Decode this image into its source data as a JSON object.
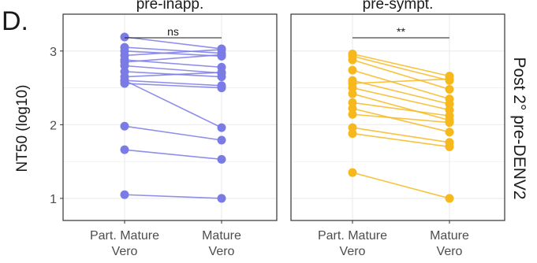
{
  "panel_letter": "D.",
  "strip_right": "Post 2° pre-DENV2",
  "chart_data": [
    {
      "type": "line",
      "facet": "pre-inapp.",
      "ylabel": "NT50 (log10)",
      "categories": [
        "Part. Mature Vero",
        "Mature Vero"
      ],
      "x_tick_lines": [
        [
          "Part. Mature",
          "Vero"
        ],
        [
          "Mature",
          "Vero"
        ]
      ],
      "y_ticks": [
        "1",
        "2",
        "3"
      ],
      "ylim": [
        0.7,
        3.5
      ],
      "grid": true,
      "color": "#7b7be6",
      "significance": "ns",
      "pairs": [
        [
          3.19,
          3.03
        ],
        [
          3.05,
          2.97
        ],
        [
          3.0,
          2.93
        ],
        [
          2.94,
          3.02
        ],
        [
          2.88,
          2.78
        ],
        [
          2.85,
          2.95
        ],
        [
          2.8,
          2.7
        ],
        [
          2.72,
          2.65
        ],
        [
          2.65,
          2.71
        ],
        [
          2.6,
          2.53
        ],
        [
          2.56,
          2.5
        ],
        [
          2.6,
          1.96
        ],
        [
          1.98,
          1.79
        ],
        [
          1.66,
          1.53
        ],
        [
          1.05,
          1.0
        ]
      ]
    },
    {
      "type": "line",
      "facet": "pre-sympt.",
      "categories": [
        "Part. Mature Vero",
        "Mature Vero"
      ],
      "x_tick_lines": [
        [
          "Part. Mature",
          "Vero"
        ],
        [
          "Mature",
          "Vero"
        ]
      ],
      "ylim": [
        0.7,
        3.5
      ],
      "grid": true,
      "color": "#f7b81d",
      "significance": "**",
      "pairs": [
        [
          2.96,
          2.66
        ],
        [
          2.93,
          2.6
        ],
        [
          2.88,
          2.48
        ],
        [
          2.74,
          2.35
        ],
        [
          2.6,
          2.28
        ],
        [
          2.56,
          2.62
        ],
        [
          2.5,
          2.2
        ],
        [
          2.42,
          2.06
        ],
        [
          2.3,
          2.12
        ],
        [
          2.22,
          1.9
        ],
        [
          2.14,
          2.03
        ],
        [
          1.96,
          1.76
        ],
        [
          1.88,
          1.7
        ],
        [
          1.35,
          1.0
        ]
      ]
    }
  ]
}
